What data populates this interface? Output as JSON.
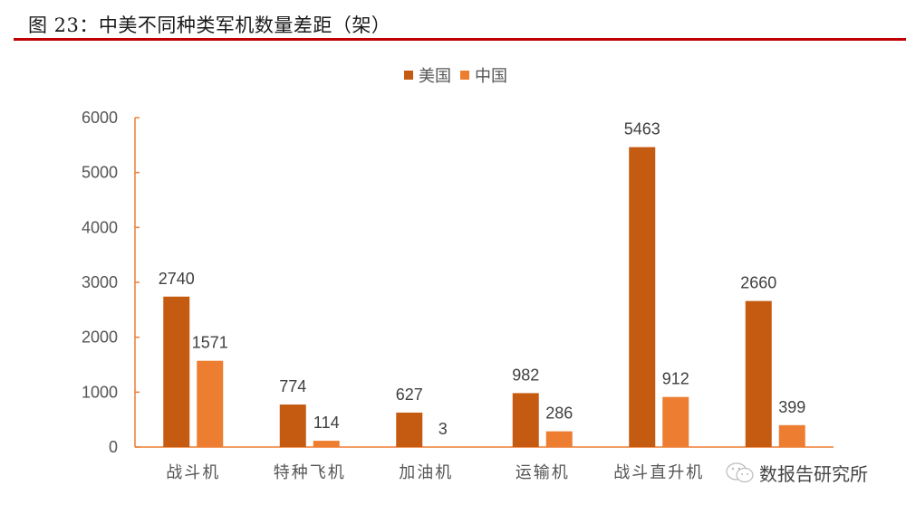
{
  "header": {
    "title": "图 23：中美不同种类军机数量差距（架）"
  },
  "legend": {
    "items": [
      {
        "label": "美国",
        "color": "#c55a11"
      },
      {
        "label": "中国",
        "color": "#ed7d31"
      }
    ]
  },
  "watermark": {
    "text": "数报告研究所",
    "icon": "wechat-icon"
  },
  "chart_data": {
    "type": "bar",
    "title": "中美不同种类军机数量差距（架）",
    "xlabel": "",
    "ylabel": "",
    "ylim": [
      0,
      6000
    ],
    "yticks": [
      0,
      1000,
      2000,
      3000,
      4000,
      5000,
      6000
    ],
    "grid": false,
    "legend_position": "top",
    "categories": [
      "战斗机",
      "特种飞机",
      "加油机",
      "运输机",
      "战斗直升机",
      ""
    ],
    "series": [
      {
        "name": "美国",
        "color": "#c55a11",
        "values": [
          2740,
          774,
          627,
          982,
          5463,
          2660
        ]
      },
      {
        "name": "中国",
        "color": "#ed7d31",
        "values": [
          1571,
          114,
          3,
          286,
          912,
          399
        ]
      }
    ],
    "axis_color": "#ed7d31",
    "label_color": "#404040"
  }
}
